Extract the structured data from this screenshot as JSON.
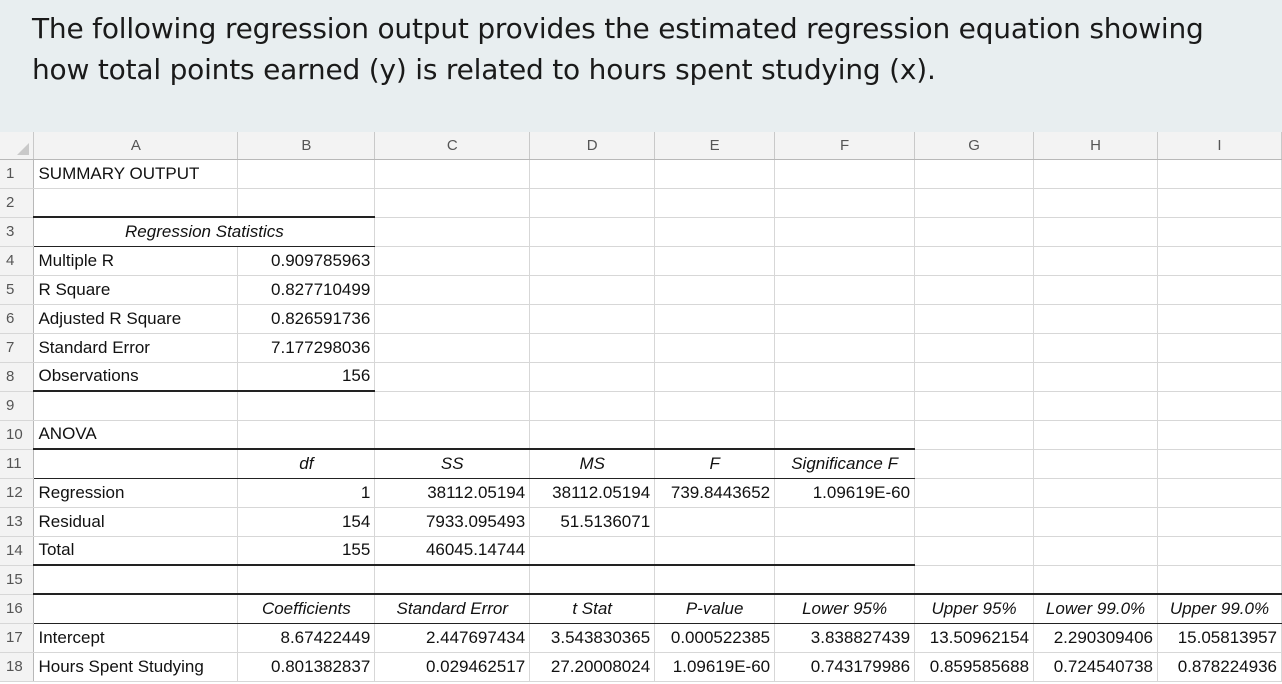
{
  "question": "The following regression output provides the estimated regression equation showing how total points earned (y) is related to hours spent studying (x).",
  "columns": [
    "A",
    "B",
    "C",
    "D",
    "E",
    "F",
    "G",
    "H",
    "I"
  ],
  "row_numbers": [
    "1",
    "2",
    "3",
    "4",
    "5",
    "6",
    "7",
    "8",
    "9",
    "10",
    "11",
    "12",
    "13",
    "14",
    "15",
    "16",
    "17",
    "18"
  ],
  "summary": {
    "title": "SUMMARY OUTPUT"
  },
  "regression_statistics": {
    "heading": "Regression Statistics",
    "rows": [
      {
        "label": "Multiple R",
        "value": "0.909785963"
      },
      {
        "label": "R Square",
        "value": "0.827710499"
      },
      {
        "label": "Adjusted R Square",
        "value": "0.826591736"
      },
      {
        "label": "Standard Error",
        "value": "7.177298036"
      },
      {
        "label": "Observations",
        "value": "156"
      }
    ]
  },
  "anova": {
    "title": "ANOVA",
    "headers": [
      "df",
      "SS",
      "MS",
      "F",
      "Significance F"
    ],
    "rows": [
      {
        "label": "Regression",
        "df": "1",
        "ss": "38112.05194",
        "ms": "38112.05194",
        "f": "739.8443652",
        "sigf": "1.09619E-60"
      },
      {
        "label": "Residual",
        "df": "154",
        "ss": "7933.095493",
        "ms": "51.5136071",
        "f": "",
        "sigf": ""
      },
      {
        "label": "Total",
        "df": "155",
        "ss": "46045.14744",
        "ms": "",
        "f": "",
        "sigf": ""
      }
    ]
  },
  "coefficients": {
    "headers": [
      "Coefficients",
      "Standard Error",
      "t Stat",
      "P-value",
      "Lower 95%",
      "Upper 95%",
      "Lower 99.0%",
      "Upper 99.0%"
    ],
    "rows": [
      {
        "label": "Intercept",
        "values": [
          "8.67422449",
          "2.447697434",
          "3.543830365",
          "0.000522385",
          "3.838827439",
          "13.50962154",
          "2.290309406",
          "15.05813957"
        ]
      },
      {
        "label": "Hours Spent Studying",
        "values": [
          "0.801382837",
          "0.029462517",
          "27.20008024",
          "1.09619E-60",
          "0.743179986",
          "0.859585688",
          "0.724540738",
          "0.878224936"
        ]
      }
    ]
  }
}
